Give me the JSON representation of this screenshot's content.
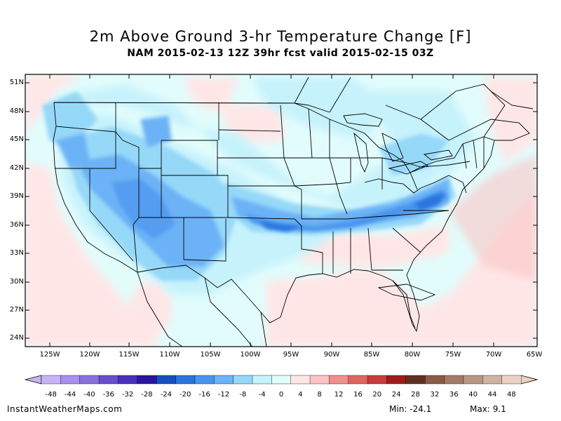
{
  "title": "2m Above Ground 3-hr Temperature Change [F]",
  "subtitle": "NAM 2015-02-13 12Z 39hr fcst valid 2015-02-15 03Z",
  "latitude_labels": [
    "51N",
    "48N",
    "45N",
    "42N",
    "39N",
    "36N",
    "33N",
    "30N",
    "27N",
    "24N"
  ],
  "longitude_labels": [
    "125W",
    "120W",
    "115W",
    "110W",
    "105W",
    "100W",
    "95W",
    "90W",
    "85W",
    "80W",
    "75W",
    "70W",
    "65W"
  ],
  "colorbar": {
    "labels": [
      "-48",
      "-44",
      "-40",
      "-36",
      "-32",
      "-28",
      "-24",
      "-20",
      "-16",
      "-12",
      "-8",
      "-4",
      "0",
      "4",
      "8",
      "12",
      "16",
      "20",
      "24",
      "28",
      "32",
      "36",
      "40",
      "44",
      "48"
    ],
    "colors": [
      "#c8b4f5",
      "#aa8ef0",
      "#8a6ee0",
      "#6a4ed0",
      "#4a30bd",
      "#2a14a4",
      "#1650c0",
      "#2a74de",
      "#4894ee",
      "#6cb2f6",
      "#96d8f8",
      "#c6f2fc",
      "#e2fcfc",
      "#ffe6e6",
      "#fcc4c4",
      "#f0908c",
      "#e06460",
      "#c83c3c",
      "#a01c1c",
      "#603020",
      "#8a5c48",
      "#a47a68",
      "#b99684",
      "#d0b2a4",
      "#ead2c6"
    ]
  },
  "footer": {
    "site": "InstantWeatherMaps.com",
    "min_label": "Min:",
    "min_value": "-24.1",
    "max_label": "Max:",
    "max_value": "9.1"
  }
}
